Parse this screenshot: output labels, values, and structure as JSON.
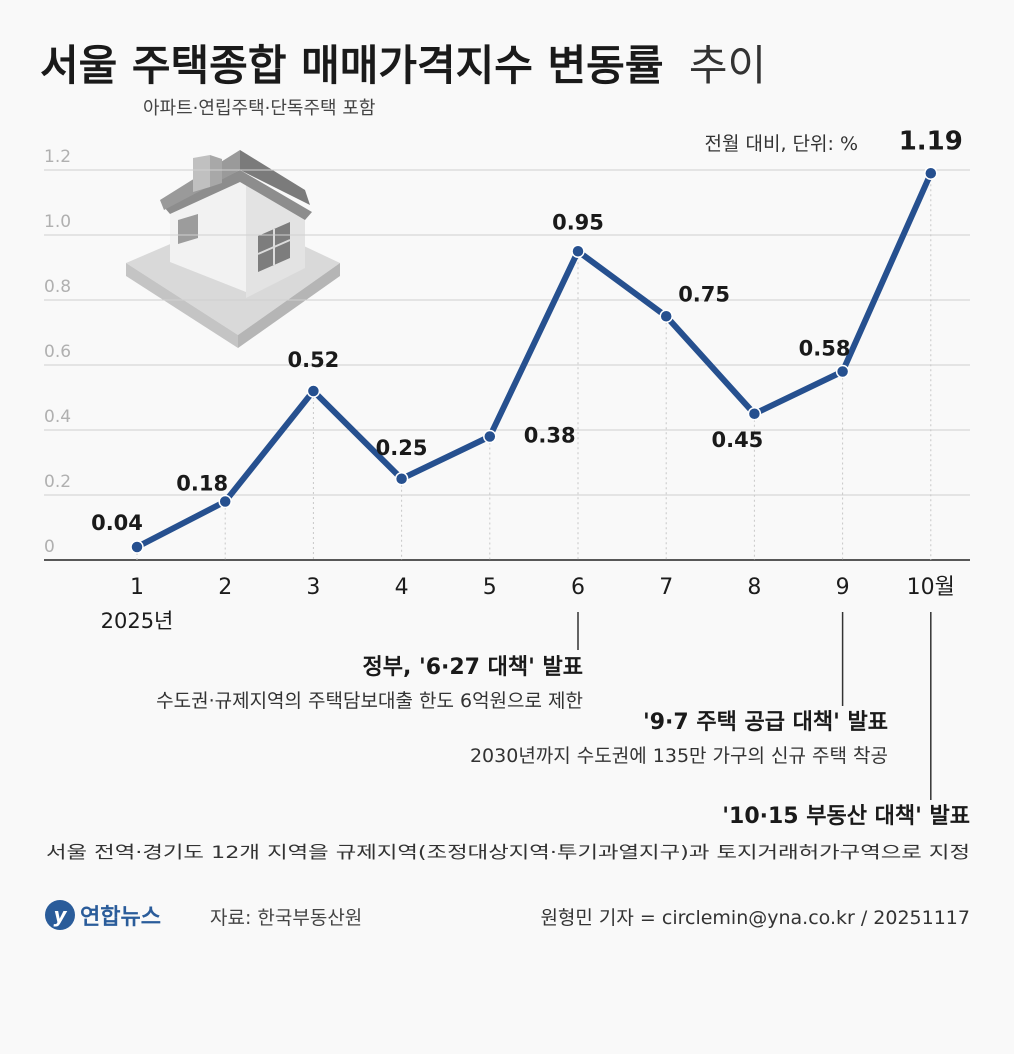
{
  "title_bold": "서울 주택종합 매매가격지수 변동률",
  "title_light": "추이",
  "subtitle": "아파트·연립주택·단독주택 포함",
  "unit_note": "전월 대비, 단위: %",
  "chart_data": {
    "type": "line",
    "title": "서울 주택종합 매매가격지수 변동률 추이",
    "x": [
      "1",
      "2",
      "3",
      "4",
      "5",
      "6",
      "7",
      "8",
      "9",
      "10월"
    ],
    "x_sublabel": "2025년",
    "series": [
      {
        "values": [
          0.04,
          0.18,
          0.52,
          0.25,
          0.38,
          0.95,
          0.75,
          0.45,
          0.58,
          1.19
        ]
      }
    ],
    "value_labels": [
      "0.04",
      "0.18",
      "0.52",
      "0.25",
      "0.38",
      "0.95",
      "0.75",
      "0.45",
      "0.58",
      "1.19"
    ],
    "y_ticks": [
      0,
      0.2,
      0.4,
      0.6,
      0.8,
      1.0,
      1.2
    ],
    "y_tick_labels": [
      "0",
      "0.2",
      "0.4",
      "0.6",
      "0.8",
      "1.0",
      "1.2"
    ],
    "ylim": [
      0,
      1.2
    ],
    "grid": true,
    "line_color": "#26508f",
    "marker_color": "#26508f"
  },
  "annotations": [
    {
      "month_index": 5,
      "headline": "정부, '6·27 대책' 발표",
      "detail": "수도권·규제지역의 주택담보대출 한도 6억원으로 제한"
    },
    {
      "month_index": 8,
      "headline": "'9·7 주택 공급 대책' 발표",
      "detail": "2030년까지 수도권에 135만 가구의 신규 주택 착공"
    },
    {
      "month_index": 9,
      "headline": "'10·15 부동산 대책' 발표",
      "detail": "서울 전역·경기도 12개 지역을 규제지역(조정대상지역·투기과열지구)과 토지거래허가구역으로 지정"
    }
  ],
  "footer": {
    "logo_text": "연합뉴스",
    "source": "자료: 한국부동산원",
    "credit": "원형민 기자 = circlemin@yna.co.kr / 20251117"
  },
  "decor": {
    "icon": "house-icon",
    "logo_icon": "yonhap-logo-icon"
  }
}
